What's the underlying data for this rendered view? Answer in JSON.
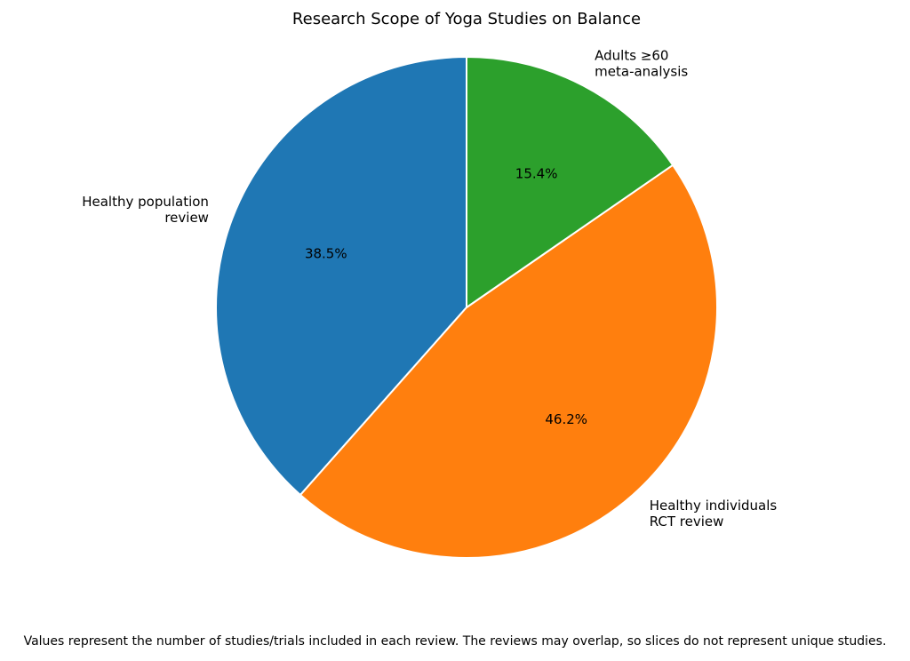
{
  "chart_data": {
    "type": "pie",
    "title": "Research Scope of Yoga Studies on Balance",
    "start_angle_deg": 90,
    "direction": "counterclockwise",
    "slices": [
      {
        "label_lines": [
          "Healthy population",
          "review"
        ],
        "value": 38.5,
        "pct_label": "38.5%",
        "color": "#1f77b4"
      },
      {
        "label_lines": [
          "Healthy individuals",
          "RCT review"
        ],
        "value": 46.2,
        "pct_label": "46.2%",
        "color": "#ff7f0e"
      },
      {
        "label_lines": [
          "Adults ≥60",
          "meta-analysis"
        ],
        "value": 15.4,
        "pct_label": "15.4%",
        "color": "#2ca02c"
      }
    ],
    "footnote": "Values represent the number of studies/trials included in each review. The reviews may overlap, so slices do not represent unique studies."
  }
}
